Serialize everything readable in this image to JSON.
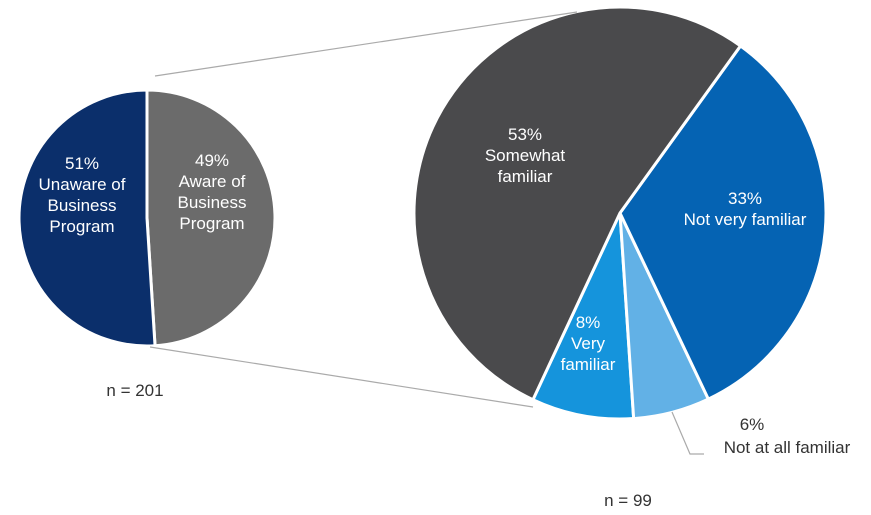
{
  "chart_data": [
    {
      "type": "pie",
      "categories": [
        "Unaware of Business Program",
        "Aware of Business Program"
      ],
      "values": [
        51,
        49
      ],
      "value_labels": [
        "51%",
        "49%"
      ],
      "colors": [
        "#0b2f6b",
        "#6b6b6b"
      ],
      "note": "n = 201"
    },
    {
      "type": "pie",
      "categories": [
        "Somewhat familiar",
        "Not very familiar",
        "Not at all familiar",
        "Very familiar"
      ],
      "values": [
        53,
        33,
        6,
        8
      ],
      "value_labels": [
        "53%",
        "33%",
        "6%",
        "8%"
      ],
      "colors": [
        "#4a4a4c",
        "#0563b3",
        "#62b1e6",
        "#1594dc"
      ],
      "note": "n = 99"
    }
  ]
}
